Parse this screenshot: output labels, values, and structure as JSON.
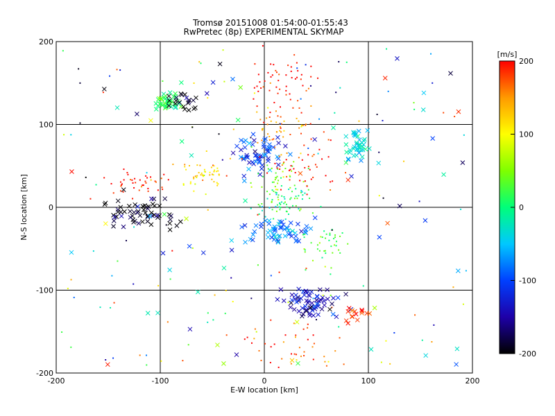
{
  "chart_data": {
    "type": "scatter",
    "title": "Tromsø 20151008 01:54:00-01:55:43",
    "subtitle": "RwPretec (8p) EXPERIMENTAL SKYMAP",
    "xlabel": "E-W location [km]",
    "ylabel": "N-S location [km]",
    "xlim": [
      -200,
      200
    ],
    "ylim": [
      -200,
      200
    ],
    "xticks": [
      -200,
      -100,
      0,
      100,
      200
    ],
    "yticks": [
      -200,
      -100,
      0,
      100,
      200
    ],
    "grid": true,
    "colorbar": {
      "label": "[m/s]",
      "range": [
        -200,
        200
      ],
      "ticks": [
        200,
        100,
        0,
        -100,
        -200
      ],
      "colormap": [
        "#000000",
        "#1e00a8",
        "#0040ff",
        "#00c8ff",
        "#00ff7a",
        "#7fff00",
        "#ffff00",
        "#ff9a00",
        "#ff0000"
      ]
    },
    "clusters": [
      {
        "marker": "x",
        "center": [
          -120,
          -8
        ],
        "spread": [
          18,
          9
        ],
        "value": -200,
        "count": 60
      },
      {
        "marker": "dot",
        "center": [
          -118,
          30
        ],
        "spread": [
          14,
          6
        ],
        "value": 195,
        "count": 40
      },
      {
        "marker": "x",
        "center": [
          -92,
          128
        ],
        "spread": [
          6,
          6
        ],
        "value": 10,
        "count": 40
      },
      {
        "marker": "x",
        "center": [
          -82,
          125
        ],
        "spread": [
          8,
          6
        ],
        "value": -200,
        "count": 20
      },
      {
        "marker": "dot",
        "center": [
          15,
          150
        ],
        "spread": [
          15,
          20
        ],
        "value": 200,
        "count": 60
      },
      {
        "marker": "dot",
        "center": [
          15,
          95
        ],
        "spread": [
          18,
          12
        ],
        "value": 150,
        "count": 50
      },
      {
        "marker": "dot",
        "center": [
          -60,
          42
        ],
        "spread": [
          15,
          10
        ],
        "value": 110,
        "count": 50
      },
      {
        "marker": "x",
        "center": [
          -5,
          62
        ],
        "spread": [
          12,
          10
        ],
        "value": -100,
        "count": 60
      },
      {
        "marker": "dot",
        "center": [
          10,
          30
        ],
        "spread": [
          15,
          15
        ],
        "value": 40,
        "count": 50
      },
      {
        "marker": "dot",
        "center": [
          15,
          5
        ],
        "spread": [
          15,
          10
        ],
        "value": 0,
        "count": 60
      },
      {
        "marker": "x",
        "center": [
          15,
          -28
        ],
        "spread": [
          14,
          8
        ],
        "value": -80,
        "count": 60
      },
      {
        "marker": "dot",
        "center": [
          60,
          -45
        ],
        "spread": [
          12,
          14
        ],
        "value": 30,
        "count": 40
      },
      {
        "marker": "x",
        "center": [
          90,
          75
        ],
        "spread": [
          7,
          10
        ],
        "value": -35,
        "count": 45
      },
      {
        "marker": "x",
        "center": [
          45,
          -115
        ],
        "spread": [
          14,
          10
        ],
        "value": -140,
        "count": 70
      },
      {
        "marker": "x",
        "center": [
          88,
          -128
        ],
        "spread": [
          5,
          5
        ],
        "value": 190,
        "count": 15
      },
      {
        "marker": "dot",
        "center": [
          30,
          -170
        ],
        "spread": [
          22,
          18
        ],
        "value": 180,
        "count": 45
      },
      {
        "marker": "dot",
        "center": [
          40,
          45
        ],
        "spread": [
          25,
          12
        ],
        "value": 200,
        "count": 40
      },
      {
        "marker": "mix",
        "center": [
          0,
          0
        ],
        "spread": [
          100,
          100
        ],
        "value": 0,
        "count": 200
      }
    ]
  }
}
